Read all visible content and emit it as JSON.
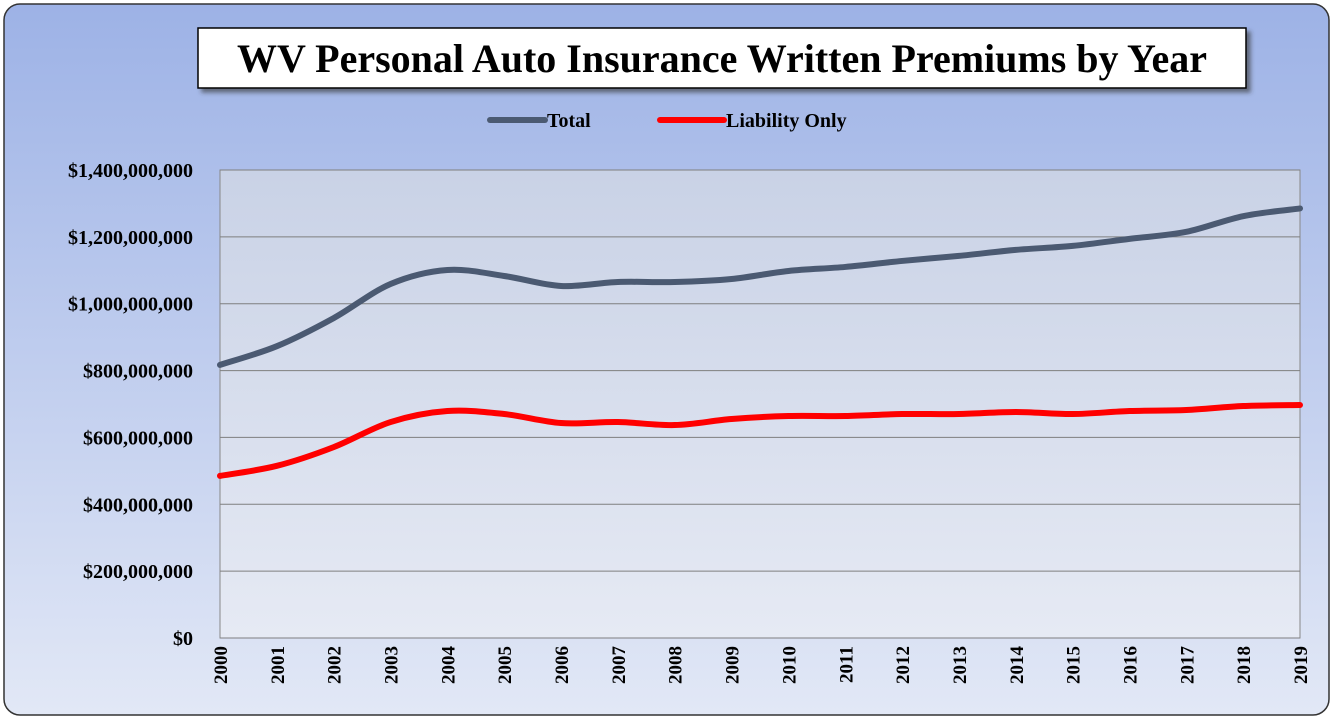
{
  "chart_data": {
    "type": "line",
    "title": "WV Personal Auto Insurance Written Premiums by Year",
    "categories": [
      "2000",
      "2001",
      "2002",
      "2003",
      "2004",
      "2005",
      "2006",
      "2007",
      "2008",
      "2009",
      "2010",
      "2011",
      "2012",
      "2013",
      "2014",
      "2015",
      "2016",
      "2017",
      "2018",
      "2019"
    ],
    "series": [
      {
        "name": "Total",
        "color": "#4b5a72",
        "values": [
          817000000,
          873000000,
          957000000,
          1059000000,
          1101000000,
          1083000000,
          1053000000,
          1065000000,
          1065000000,
          1074000000,
          1098000000,
          1110000000,
          1128000000,
          1143000000,
          1161000000,
          1173000000,
          1194000000,
          1215000000,
          1262000000,
          1285000000
        ]
      },
      {
        "name": "Liability Only",
        "color": "#ff0000",
        "values": [
          485000000,
          515000000,
          571000000,
          646000000,
          679000000,
          670000000,
          643000000,
          646000000,
          637000000,
          655000000,
          664000000,
          664000000,
          670000000,
          670000000,
          676000000,
          670000000,
          679000000,
          682000000,
          694000000,
          697000000
        ]
      }
    ],
    "ylim": [
      0,
      1400000000
    ],
    "yticks": [
      {
        "value": 0,
        "label": "$0"
      },
      {
        "value": 200000000,
        "label": "$200,000,000"
      },
      {
        "value": 400000000,
        "label": "$400,000,000"
      },
      {
        "value": 600000000,
        "label": "$600,000,000"
      },
      {
        "value": 800000000,
        "label": "$800,000,000"
      },
      {
        "value": 1000000000,
        "label": "$1,000,000,000"
      },
      {
        "value": 1200000000,
        "label": "$1,200,000,000"
      },
      {
        "value": 1400000000,
        "label": "$1,400,000,000"
      }
    ],
    "grid": true,
    "legend": "top"
  }
}
